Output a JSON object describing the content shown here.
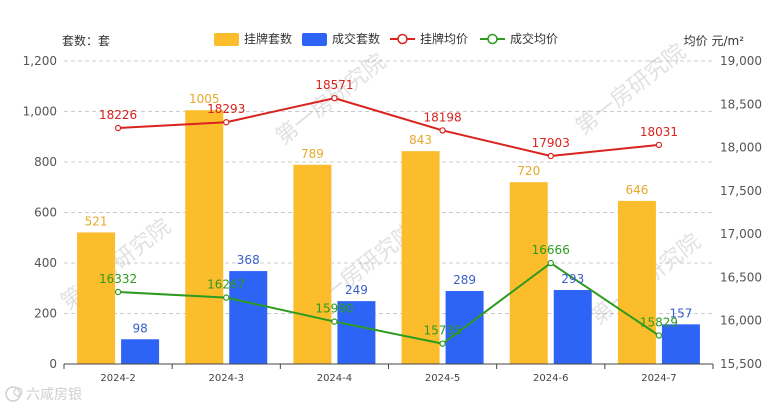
{
  "chart_data": {
    "type": "bar",
    "categories": [
      "2024-2",
      "2024-3",
      "2024-4",
      "2024-5",
      "2024-6",
      "2024-7"
    ],
    "left_axis": {
      "label": "套数：套",
      "ylim": [
        0,
        1200
      ],
      "ticks": [
        "0",
        "200",
        "400",
        "600",
        "800",
        "1,000",
        "1,200"
      ],
      "tick_values": [
        0,
        200,
        400,
        600,
        800,
        1000,
        1200
      ]
    },
    "right_axis": {
      "label": "均价 元/m²",
      "ylim": [
        15500,
        19000
      ],
      "ticks": [
        "15,500",
        "16,000",
        "16,500",
        "17,000",
        "17,500",
        "18,000",
        "18,500",
        "19,000"
      ],
      "tick_values": [
        15500,
        16000,
        16500,
        17000,
        17500,
        18000,
        18500,
        19000
      ]
    },
    "series": [
      {
        "name": "挂牌套数",
        "kind": "bar",
        "axis": "left",
        "color": "#FBBD2C",
        "values": [
          521,
          1005,
          789,
          843,
          720,
          646
        ],
        "labels": [
          "521",
          "1005",
          "789",
          "843",
          "720",
          "646"
        ]
      },
      {
        "name": "成交套数",
        "kind": "bar",
        "axis": "left",
        "color": "#2E64F6",
        "values": [
          98,
          368,
          249,
          289,
          293,
          157
        ],
        "labels": [
          "98",
          "368",
          "249",
          "289",
          "293",
          "157"
        ]
      },
      {
        "name": "挂牌均价",
        "kind": "line",
        "axis": "right",
        "color": "#D9231E",
        "values": [
          18226,
          18293,
          18571,
          18198,
          17903,
          18031
        ],
        "labels": [
          "18226",
          "18293",
          "18571",
          "18198",
          "17903",
          "18031"
        ]
      },
      {
        "name": "成交均价",
        "kind": "line",
        "axis": "right",
        "color": "#2C9B1F",
        "values": [
          16332,
          16267,
          15990,
          15735,
          16666,
          15829
        ],
        "labels": [
          "16332",
          "16267",
          "15990",
          "15735",
          "16666",
          "15829"
        ]
      }
    ],
    "legend": "top",
    "grid": true
  },
  "watermark": {
    "text": "第一房研究院"
  },
  "logo": {
    "text": "六咸房银"
  }
}
